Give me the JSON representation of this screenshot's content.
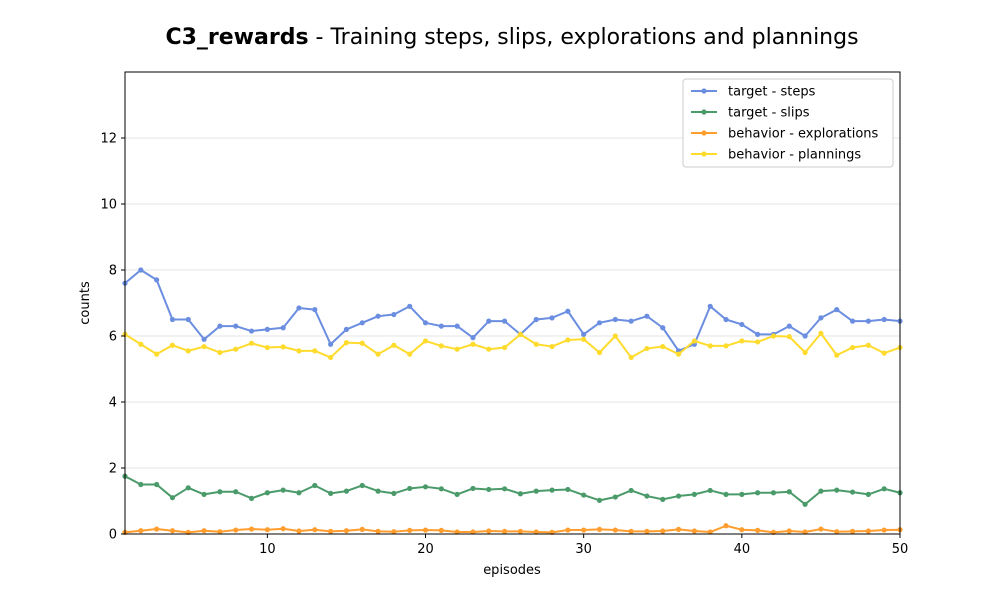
{
  "chart_data": {
    "type": "line",
    "title_bold": "C3_rewards",
    "title_rest": " - Training steps, slips, explorations and plannings",
    "xlabel": "episodes",
    "ylabel": "counts",
    "xlim": [
      1,
      50
    ],
    "ylim": [
      0,
      14
    ],
    "xticks": [
      10,
      20,
      30,
      40,
      50
    ],
    "yticks": [
      0,
      2,
      4,
      6,
      8,
      10,
      12
    ],
    "grid": "horizontal",
    "legend_position": "top-right",
    "x": [
      1,
      2,
      3,
      4,
      5,
      6,
      7,
      8,
      9,
      10,
      11,
      12,
      13,
      14,
      15,
      16,
      17,
      18,
      19,
      20,
      21,
      22,
      23,
      24,
      25,
      26,
      27,
      28,
      29,
      30,
      31,
      32,
      33,
      34,
      35,
      36,
      37,
      38,
      39,
      40,
      41,
      42,
      43,
      44,
      45,
      46,
      47,
      48,
      49,
      50
    ],
    "series": [
      {
        "name": "target - steps",
        "color": "#6b8ee0",
        "values": [
          7.6,
          8.0,
          7.7,
          6.5,
          6.5,
          5.9,
          6.3,
          6.3,
          6.15,
          6.2,
          6.25,
          6.85,
          6.8,
          5.75,
          6.2,
          6.4,
          6.6,
          6.65,
          6.9,
          6.4,
          6.3,
          6.3,
          5.95,
          6.45,
          6.45,
          6.05,
          6.5,
          6.55,
          6.75,
          6.05,
          6.4,
          6.5,
          6.45,
          6.6,
          6.25,
          5.55,
          5.75,
          6.9,
          6.5,
          6.35,
          6.05,
          6.05,
          6.3,
          6.0,
          6.55,
          6.8,
          6.45,
          6.45,
          6.5,
          6.45
        ]
      },
      {
        "name": "target - slips",
        "color": "#4a9a6a",
        "values": [
          1.75,
          1.5,
          1.5,
          1.1,
          1.4,
          1.2,
          1.28,
          1.28,
          1.08,
          1.25,
          1.33,
          1.25,
          1.47,
          1.23,
          1.3,
          1.47,
          1.3,
          1.23,
          1.38,
          1.43,
          1.37,
          1.2,
          1.38,
          1.35,
          1.37,
          1.22,
          1.3,
          1.33,
          1.35,
          1.18,
          1.02,
          1.12,
          1.32,
          1.15,
          1.05,
          1.15,
          1.2,
          1.32,
          1.2,
          1.2,
          1.25,
          1.25,
          1.28,
          0.9,
          1.3,
          1.33,
          1.27,
          1.2,
          1.37,
          1.25
        ]
      },
      {
        "name": "behavior - explorations",
        "color": "#ff9d2e",
        "values": [
          0.05,
          0.1,
          0.15,
          0.1,
          0.05,
          0.1,
          0.07,
          0.12,
          0.15,
          0.13,
          0.16,
          0.09,
          0.13,
          0.08,
          0.1,
          0.14,
          0.08,
          0.07,
          0.11,
          0.12,
          0.11,
          0.06,
          0.06,
          0.09,
          0.08,
          0.08,
          0.06,
          0.05,
          0.12,
          0.12,
          0.14,
          0.12,
          0.08,
          0.08,
          0.09,
          0.14,
          0.09,
          0.06,
          0.25,
          0.13,
          0.11,
          0.05,
          0.09,
          0.06,
          0.15,
          0.07,
          0.08,
          0.09,
          0.12,
          0.13
        ]
      },
      {
        "name": "behavior - plannings",
        "color": "#ffdb2e",
        "values": [
          6.05,
          5.75,
          5.45,
          5.72,
          5.55,
          5.68,
          5.5,
          5.6,
          5.78,
          5.65,
          5.67,
          5.55,
          5.55,
          5.35,
          5.8,
          5.78,
          5.45,
          5.72,
          5.45,
          5.85,
          5.7,
          5.6,
          5.75,
          5.6,
          5.65,
          6.05,
          5.75,
          5.68,
          5.88,
          5.9,
          5.5,
          6.0,
          5.35,
          5.62,
          5.68,
          5.45,
          5.85,
          5.7,
          5.7,
          5.85,
          5.82,
          6.0,
          5.98,
          5.5,
          6.08,
          5.42,
          5.65,
          5.72,
          5.48,
          5.65
        ]
      }
    ]
  }
}
